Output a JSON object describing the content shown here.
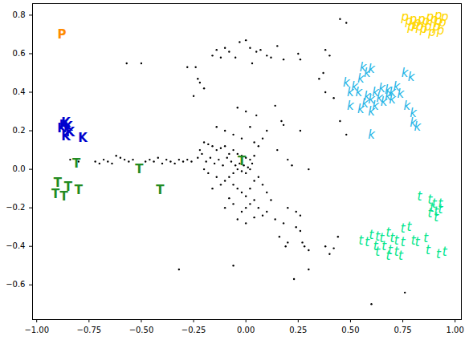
{
  "chart_data": {
    "type": "scatter",
    "xlim": [
      -1.02,
      1.03
    ],
    "ylim": [
      -0.78,
      0.86
    ],
    "xticks": [
      {
        "value": -1,
        "label": "−1.00"
      },
      {
        "value": -0.75,
        "label": "−0.75"
      },
      {
        "value": -0.5,
        "label": "−0.50"
      },
      {
        "value": -0.25,
        "label": "−0.25"
      },
      {
        "value": 0,
        "label": "0.00"
      },
      {
        "value": 0.25,
        "label": "0.25"
      },
      {
        "value": 0.5,
        "label": "0.50"
      },
      {
        "value": 0.75,
        "label": "0.75"
      },
      {
        "value": 1,
        "label": "1.00"
      }
    ],
    "yticks": [
      {
        "value": -0.6,
        "label": "−0.6"
      },
      {
        "value": -0.4,
        "label": "−0.4"
      },
      {
        "value": -0.2,
        "label": "−0.2"
      },
      {
        "value": 0,
        "label": "0.0"
      },
      {
        "value": 0.2,
        "label": "0.2"
      },
      {
        "value": 0.4,
        "label": "0.4"
      },
      {
        "value": 0.6,
        "label": "0.6"
      },
      {
        "value": 0.8,
        "label": "0.8"
      }
    ],
    "grid": false,
    "series": [
      {
        "marker": "point",
        "color": "#000000",
        "values": [
          [
            -0.84,
            0.05
          ],
          [
            -0.8,
            0.04
          ],
          [
            -0.72,
            0.04
          ],
          [
            -0.7,
            0.03
          ],
          [
            -0.68,
            0.05
          ],
          [
            -0.66,
            0.04
          ],
          [
            -0.64,
            0.03
          ],
          [
            -0.62,
            0.07
          ],
          [
            -0.6,
            0.06
          ],
          [
            -0.58,
            0.05
          ],
          [
            -0.56,
            0.04
          ],
          [
            -0.54,
            0.05
          ],
          [
            -0.48,
            0.04
          ],
          [
            -0.46,
            0.05
          ],
          [
            -0.44,
            0.04
          ],
          [
            -0.42,
            0.06
          ],
          [
            -0.4,
            0.03
          ],
          [
            -0.38,
            0.05
          ],
          [
            -0.36,
            0.04
          ],
          [
            -0.34,
            0.03
          ],
          [
            -0.32,
            0.05
          ],
          [
            -0.3,
            0.04
          ],
          [
            -0.28,
            0.05
          ],
          [
            -0.26,
            0.04
          ],
          [
            -0.2,
            0.14
          ],
          [
            -0.18,
            0.13
          ],
          [
            -0.16,
            0.12
          ],
          [
            -0.14,
            0.1
          ],
          [
            -0.12,
            0.11
          ],
          [
            -0.1,
            0.12
          ],
          [
            -0.08,
            0.08
          ],
          [
            -0.06,
            0.1
          ],
          [
            -0.04,
            0.08
          ],
          [
            -0.02,
            0.07
          ],
          [
            0.0,
            0.06
          ],
          [
            0.02,
            0.05
          ],
          [
            -0.03,
            0.03
          ],
          [
            -0.01,
            0.02
          ],
          [
            0.01,
            0.01
          ],
          [
            -0.05,
            0.02
          ],
          [
            -0.07,
            0.04
          ],
          [
            -0.09,
            0.06
          ],
          [
            -0.11,
            0.02
          ],
          [
            -0.13,
            0.05
          ],
          [
            -0.15,
            0.03
          ],
          [
            -0.17,
            0.06
          ],
          [
            -0.19,
            0.04
          ],
          [
            -0.21,
            0.08
          ],
          [
            -0.23,
            0.06
          ],
          [
            -0.22,
            0.1
          ],
          [
            -0.04,
            0.0
          ],
          [
            -0.02,
            -0.01
          ],
          [
            0.0,
            -0.02
          ],
          [
            0.02,
            0.0
          ],
          [
            0.03,
            0.03
          ],
          [
            0.04,
            0.07
          ],
          [
            -0.06,
            -0.02
          ],
          [
            -0.08,
            -0.04
          ],
          [
            -0.1,
            -0.06
          ],
          [
            -0.12,
            -0.08
          ],
          [
            -0.14,
            -0.04
          ],
          [
            -0.16,
            -0.1
          ],
          [
            -0.18,
            -0.02
          ],
          [
            -0.2,
            0.0
          ],
          [
            -0.06,
            -0.08
          ],
          [
            -0.04,
            -0.1
          ],
          [
            -0.02,
            -0.12
          ],
          [
            0.0,
            -0.14
          ],
          [
            0.02,
            -0.1
          ],
          [
            0.04,
            -0.06
          ],
          [
            0.06,
            -0.04
          ],
          [
            0.08,
            -0.08
          ],
          [
            0.1,
            -0.12
          ],
          [
            0.12,
            -0.16
          ],
          [
            0.04,
            -0.16
          ],
          [
            0.02,
            -0.18
          ],
          [
            0.0,
            -0.2
          ],
          [
            -0.02,
            -0.22
          ],
          [
            0.06,
            -0.2
          ],
          [
            0.08,
            -0.24
          ],
          [
            -0.06,
            -0.18
          ],
          [
            -0.08,
            -0.15
          ],
          [
            -0.1,
            -0.2
          ],
          [
            -0.04,
            -0.26
          ],
          [
            0.0,
            -0.28
          ],
          [
            0.04,
            -0.25
          ],
          [
            0.1,
            -0.22
          ],
          [
            0.14,
            -0.26
          ],
          [
            0.18,
            -0.28
          ],
          [
            0.24,
            -0.22
          ],
          [
            0.26,
            -0.24
          ],
          [
            0.06,
            0.12
          ],
          [
            0.08,
            0.16
          ],
          [
            0.1,
            0.2
          ],
          [
            0.04,
            0.14
          ],
          [
            -0.02,
            0.16
          ],
          [
            -0.06,
            0.18
          ],
          [
            -0.1,
            0.2
          ],
          [
            -0.14,
            0.22
          ],
          [
            0.02,
            0.22
          ],
          [
            0.05,
            0.28
          ],
          [
            0.0,
            0.3
          ],
          [
            -0.04,
            0.32
          ],
          [
            -0.24,
            0.53
          ],
          [
            -0.23,
            0.47
          ],
          [
            -0.22,
            0.45
          ],
          [
            -0.2,
            0.42
          ],
          [
            -0.25,
            0.38
          ],
          [
            -0.14,
            0.62
          ],
          [
            -0.12,
            0.58
          ],
          [
            -0.1,
            0.63
          ],
          [
            -0.08,
            0.61
          ],
          [
            -0.05,
            0.58
          ],
          [
            -0.03,
            0.66
          ],
          [
            0.0,
            0.67
          ],
          [
            0.02,
            0.63
          ],
          [
            0.05,
            0.61
          ],
          [
            0.07,
            0.62
          ],
          [
            0.1,
            0.59
          ],
          [
            0.12,
            0.58
          ],
          [
            0.15,
            0.64
          ],
          [
            0.18,
            0.57
          ],
          [
            0.25,
            0.6
          ],
          [
            0.26,
            0.57
          ],
          [
            0.37,
            0.5
          ],
          [
            0.35,
            0.47
          ],
          [
            0.38,
            0.62
          ],
          [
            0.4,
            0.59
          ],
          [
            0.45,
            0.78
          ],
          [
            0.48,
            0.76
          ],
          [
            -0.57,
            0.55
          ],
          [
            -0.5,
            0.55
          ],
          [
            -0.28,
            0.53
          ],
          [
            0.03,
            0.55
          ],
          [
            -0.16,
            0.59
          ],
          [
            0.14,
            0.33
          ],
          [
            0.17,
            0.25
          ],
          [
            0.18,
            0.23
          ],
          [
            0.26,
            0.2
          ],
          [
            0.38,
            0.4
          ],
          [
            0.42,
            0.37
          ],
          [
            0.45,
            0.25
          ],
          [
            0.48,
            0.18
          ],
          [
            0.15,
            0.1
          ],
          [
            0.2,
            0.05
          ],
          [
            0.22,
            0.02
          ],
          [
            0.3,
            0.0
          ],
          [
            0.2,
            -0.2
          ],
          [
            0.24,
            -0.3
          ],
          [
            0.26,
            -0.32
          ],
          [
            0.28,
            -0.4
          ],
          [
            0.2,
            -0.38
          ],
          [
            0.19,
            -0.4
          ],
          [
            0.27,
            -0.38
          ],
          [
            0.16,
            -0.35
          ],
          [
            0.3,
            -0.42
          ],
          [
            0.38,
            -0.4
          ],
          [
            0.4,
            -0.44
          ],
          [
            0.42,
            -0.41
          ],
          [
            0.3,
            -0.52
          ],
          [
            0.23,
            -0.57
          ],
          [
            -0.06,
            -0.5
          ],
          [
            0.6,
            -0.7
          ],
          [
            0.76,
            -0.64
          ],
          [
            -0.32,
            -0.52
          ],
          [
            0.44,
            -0.35
          ]
        ]
      },
      {
        "name": "P",
        "marker": "bold_letter",
        "color": "#ff8c00",
        "values": [
          [
            -0.88,
            0.7
          ]
        ]
      },
      {
        "name": "K",
        "marker": "bold_letter",
        "color": "#0000cd",
        "values": [
          [
            -0.87,
            0.23
          ],
          [
            -0.85,
            0.22
          ],
          [
            -0.88,
            0.21
          ],
          [
            -0.84,
            0.19
          ],
          [
            -0.86,
            0.17
          ],
          [
            -0.78,
            0.16
          ],
          [
            -0.86,
            0.24
          ]
        ]
      },
      {
        "name": "T",
        "marker": "bold_letter",
        "color": "#228b22",
        "values": [
          [
            -0.81,
            0.03
          ],
          [
            -0.9,
            -0.07
          ],
          [
            -0.85,
            -0.09
          ],
          [
            -0.8,
            -0.11
          ],
          [
            -0.91,
            -0.13
          ],
          [
            -0.87,
            -0.14
          ],
          [
            -0.51,
            0.0
          ],
          [
            -0.41,
            -0.11
          ],
          [
            -0.02,
            0.04
          ]
        ]
      },
      {
        "name": "k",
        "marker": "italic_letter",
        "color": "#1eb4e6",
        "values": [
          [
            0.56,
            0.53
          ],
          [
            0.58,
            0.5
          ],
          [
            0.55,
            0.47
          ],
          [
            0.6,
            0.52
          ],
          [
            0.48,
            0.45
          ],
          [
            0.52,
            0.43
          ],
          [
            0.5,
            0.4
          ],
          [
            0.54,
            0.4
          ],
          [
            0.58,
            0.38
          ],
          [
            0.62,
            0.4
          ],
          [
            0.65,
            0.42
          ],
          [
            0.68,
            0.41
          ],
          [
            0.7,
            0.4
          ],
          [
            0.72,
            0.43
          ],
          [
            0.6,
            0.36
          ],
          [
            0.64,
            0.37
          ],
          [
            0.66,
            0.35
          ],
          [
            0.7,
            0.36
          ],
          [
            0.68,
            0.38
          ],
          [
            0.5,
            0.33
          ],
          [
            0.55,
            0.31
          ],
          [
            0.6,
            0.3
          ],
          [
            0.62,
            0.33
          ],
          [
            0.76,
            0.5
          ],
          [
            0.79,
            0.48
          ],
          [
            0.77,
            0.33
          ],
          [
            0.8,
            0.29
          ],
          [
            0.8,
            0.24
          ],
          [
            0.82,
            0.22
          ],
          [
            0.6,
            0.18
          ],
          [
            0.74,
            0.39
          ],
          [
            0.57,
            0.34
          ]
        ]
      },
      {
        "name": "t",
        "marker": "italic_letter",
        "color": "#00e68c",
        "values": [
          [
            0.83,
            -0.14
          ],
          [
            0.88,
            -0.16
          ],
          [
            0.9,
            -0.18
          ],
          [
            0.93,
            -0.18
          ],
          [
            0.89,
            -0.2
          ],
          [
            0.91,
            -0.22
          ],
          [
            0.93,
            -0.21
          ],
          [
            0.88,
            -0.23
          ],
          [
            0.91,
            -0.25
          ],
          [
            0.78,
            -0.3
          ],
          [
            0.75,
            -0.31
          ],
          [
            0.68,
            -0.33
          ],
          [
            0.63,
            -0.35
          ],
          [
            0.6,
            -0.34
          ],
          [
            0.65,
            -0.36
          ],
          [
            0.7,
            -0.36
          ],
          [
            0.72,
            -0.37
          ],
          [
            0.75,
            -0.38
          ],
          [
            0.8,
            -0.37
          ],
          [
            0.82,
            -0.38
          ],
          [
            0.86,
            -0.36
          ],
          [
            0.55,
            -0.37
          ],
          [
            0.58,
            -0.38
          ],
          [
            0.62,
            -0.4
          ],
          [
            0.66,
            -0.4
          ],
          [
            0.69,
            -0.42
          ],
          [
            0.63,
            -0.43
          ],
          [
            0.72,
            -0.43
          ],
          [
            0.74,
            -0.45
          ],
          [
            0.87,
            -0.42
          ],
          [
            0.92,
            -0.44
          ],
          [
            0.95,
            -0.43
          ],
          [
            0.68,
            -0.45
          ]
        ]
      },
      {
        "name": "p",
        "marker": "italic_letter",
        "color": "#ffd700",
        "values": [
          [
            0.76,
            0.79
          ],
          [
            0.78,
            0.77
          ],
          [
            0.8,
            0.78
          ],
          [
            0.82,
            0.76
          ],
          [
            0.84,
            0.78
          ],
          [
            0.86,
            0.77
          ],
          [
            0.88,
            0.79
          ],
          [
            0.9,
            0.78
          ],
          [
            0.92,
            0.77
          ],
          [
            0.94,
            0.76
          ],
          [
            0.79,
            0.74
          ],
          [
            0.83,
            0.74
          ],
          [
            0.87,
            0.74
          ],
          [
            0.91,
            0.74
          ],
          [
            0.93,
            0.72
          ],
          [
            0.89,
            0.71
          ],
          [
            0.85,
            0.73
          ],
          [
            0.81,
            0.75
          ],
          [
            0.95,
            0.79
          ],
          [
            0.92,
            0.8
          ]
        ]
      }
    ]
  }
}
